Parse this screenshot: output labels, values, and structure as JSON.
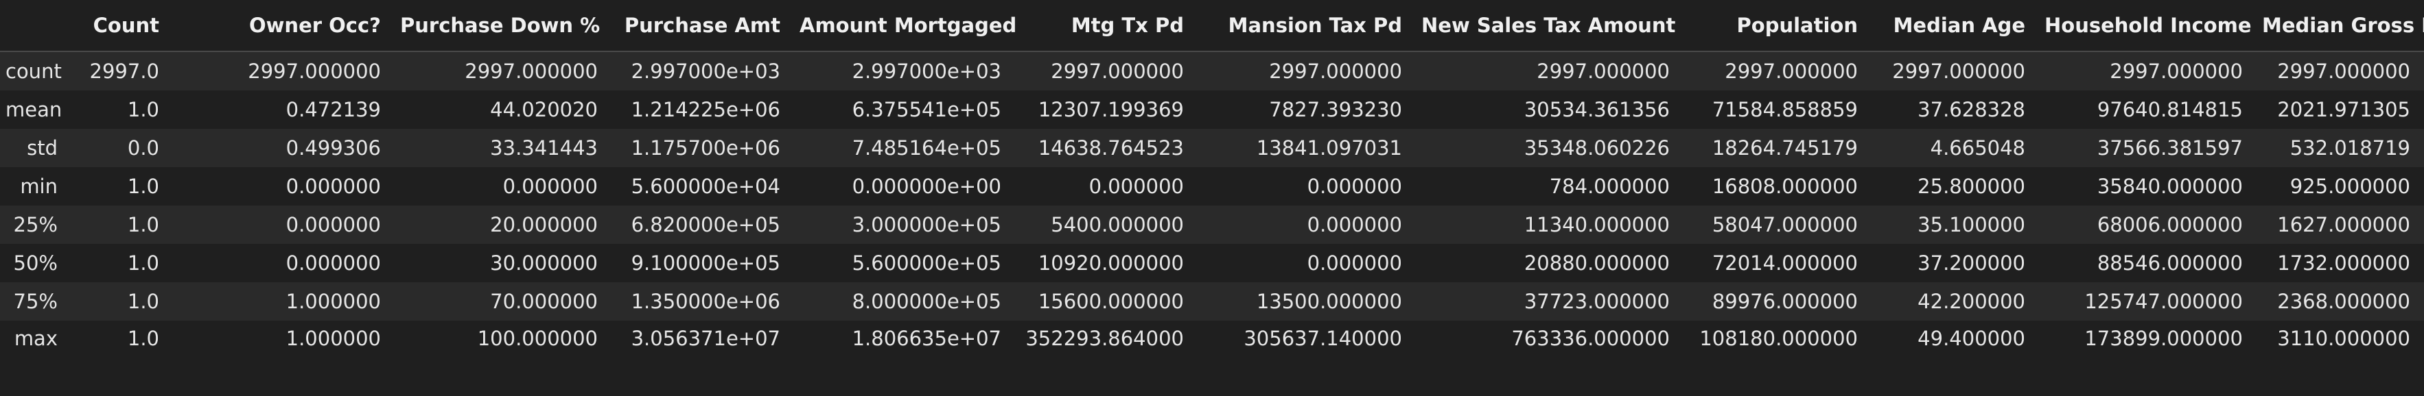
{
  "columns": [
    "Count",
    "Owner Occ?",
    "Purchase Down %",
    "Purchase Amt",
    "Amount Mortgaged",
    "Mtg Tx Pd",
    "Mansion Tax Pd",
    "New Sales Tax Amount",
    "Population",
    "Median Age",
    "Household Income",
    "Median Gross Rent"
  ],
  "rows": [
    {
      "index": "count",
      "cells": [
        "2997.0",
        "2997.000000",
        "2997.000000",
        "2.997000e+03",
        "2.997000e+03",
        "2997.000000",
        "2997.000000",
        "2997.000000",
        "2997.000000",
        "2997.000000",
        "2997.000000",
        "2997.000000"
      ]
    },
    {
      "index": "mean",
      "cells": [
        "1.0",
        "0.472139",
        "44.020020",
        "1.214225e+06",
        "6.375541e+05",
        "12307.199369",
        "7827.393230",
        "30534.361356",
        "71584.858859",
        "37.628328",
        "97640.814815",
        "2021.971305"
      ]
    },
    {
      "index": "std",
      "cells": [
        "0.0",
        "0.499306",
        "33.341443",
        "1.175700e+06",
        "7.485164e+05",
        "14638.764523",
        "13841.097031",
        "35348.060226",
        "18264.745179",
        "4.665048",
        "37566.381597",
        "532.018719"
      ]
    },
    {
      "index": "min",
      "cells": [
        "1.0",
        "0.000000",
        "0.000000",
        "5.600000e+04",
        "0.000000e+00",
        "0.000000",
        "0.000000",
        "784.000000",
        "16808.000000",
        "25.800000",
        "35840.000000",
        "925.000000"
      ]
    },
    {
      "index": "25%",
      "cells": [
        "1.0",
        "0.000000",
        "20.000000",
        "6.820000e+05",
        "3.000000e+05",
        "5400.000000",
        "0.000000",
        "11340.000000",
        "58047.000000",
        "35.100000",
        "68006.000000",
        "1627.000000"
      ]
    },
    {
      "index": "50%",
      "cells": [
        "1.0",
        "0.000000",
        "30.000000",
        "9.100000e+05",
        "5.600000e+05",
        "10920.000000",
        "0.000000",
        "20880.000000",
        "72014.000000",
        "37.200000",
        "88546.000000",
        "1732.000000"
      ]
    },
    {
      "index": "75%",
      "cells": [
        "1.0",
        "1.000000",
        "70.000000",
        "1.350000e+06",
        "8.000000e+05",
        "15600.000000",
        "13500.000000",
        "37723.000000",
        "89976.000000",
        "42.200000",
        "125747.000000",
        "2368.000000"
      ]
    },
    {
      "index": "max",
      "cells": [
        "1.0",
        "1.000000",
        "100.000000",
        "3.056371e+07",
        "1.806635e+07",
        "352293.864000",
        "305637.140000",
        "763336.000000",
        "108180.000000",
        "49.400000",
        "173899.000000",
        "3110.000000"
      ]
    }
  ]
}
